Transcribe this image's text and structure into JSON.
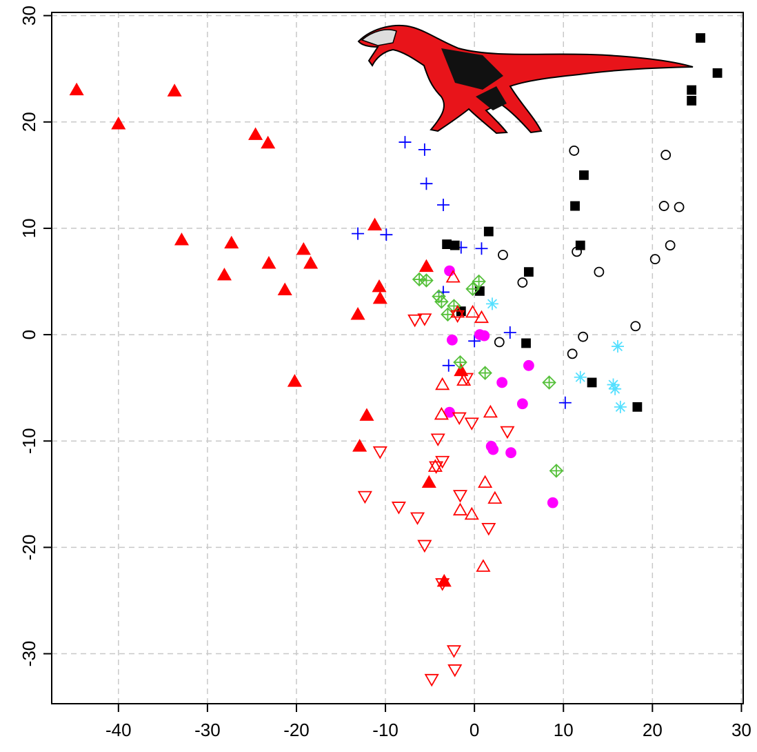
{
  "chart_data": {
    "type": "scatter",
    "xlim": [
      -47.5,
      30.2
    ],
    "ylim": [
      -34.7,
      30.3
    ],
    "xticks": [
      -40,
      -30,
      -20,
      -10,
      0,
      10,
      20,
      30
    ],
    "yticks": [
      -30,
      -20,
      -10,
      0,
      10,
      20,
      30
    ],
    "grid": true,
    "series": [
      {
        "marker": "triangle-filled",
        "color": "#ff0000",
        "x": [
          -44.7,
          -40,
          -33.7,
          -32.9,
          -27.3,
          -28.1,
          -24.6,
          -23.2,
          -23.1,
          -21.3,
          -19.2,
          -18.4,
          -20.2,
          -11.2,
          -10.7,
          -10.6,
          -13.1,
          -12.1,
          -12.9,
          -5.4,
          -5.1,
          -3.4,
          -1.5
        ],
        "values": [
          23.0,
          19.8,
          22.9,
          8.9,
          8.6,
          5.6,
          18.8,
          18.0,
          6.7,
          4.2,
          8.0,
          6.7,
          -4.4,
          10.3,
          4.5,
          3.4,
          1.9,
          -7.6,
          -10.5,
          6.4,
          -13.9,
          -23.2,
          -3.4
        ]
      },
      {
        "marker": "plus",
        "color": "#0000ff",
        "x": [
          -7.8,
          -5.6,
          -5.4,
          -3.5,
          -13.1,
          -9.9,
          -1.5,
          0.8,
          -3.5,
          0,
          4,
          -2.9,
          10.2
        ],
        "values": [
          18.1,
          17.4,
          14.2,
          12.2,
          9.5,
          9.4,
          8.2,
          8.1,
          4.0,
          -0.6,
          0.2,
          -2.9,
          -6.4
        ]
      },
      {
        "marker": "square-filled",
        "color": "#000000",
        "x": [
          25.4,
          27.3,
          24.4,
          24.4,
          12.3,
          11.3,
          11.9,
          1.6,
          -3.1,
          -2.2,
          0.6,
          -1.5,
          6.1,
          5.8,
          13.2,
          18.3
        ],
        "values": [
          27.9,
          24.6,
          23.0,
          22.0,
          15.0,
          12.1,
          8.4,
          9.7,
          8.5,
          8.4,
          4.1,
          2.2,
          5.9,
          -0.8,
          -4.5,
          -6.8
        ]
      },
      {
        "marker": "circle-open",
        "color": "#000000",
        "x": [
          11.2,
          21.5,
          21.3,
          23.0,
          22.0,
          20.3,
          11.5,
          3.2,
          14.0,
          5.4,
          18.1,
          12.2,
          2.8,
          11.0
        ],
        "values": [
          17.3,
          16.9,
          12.1,
          12.0,
          8.4,
          7.1,
          7.8,
          7.5,
          5.9,
          4.9,
          0.8,
          -0.2,
          -0.7,
          -1.8
        ]
      },
      {
        "marker": "asterisk",
        "color": "#55e0ff",
        "x": [
          2.0,
          16.1,
          11.9,
          15.6,
          15.8,
          16.4
        ],
        "values": [
          2.9,
          -1.1,
          -4.0,
          -4.7,
          -5.1,
          -6.8
        ]
      },
      {
        "marker": "diamond-plus",
        "color": "#55c03a",
        "x": [
          -6.2,
          -5.4,
          -4.0,
          -3.7,
          -3.0,
          0.5,
          -0.2,
          -2.3,
          -1.6,
          1.2,
          8.4,
          9.2
        ],
        "values": [
          5.2,
          5.1,
          3.6,
          3.1,
          1.9,
          5.0,
          4.3,
          2.7,
          -2.6,
          -3.6,
          -4.5,
          -12.8
        ]
      },
      {
        "marker": "circle-filled",
        "color": "#ff00ff",
        "x": [
          -2.8,
          -2.5,
          0.6,
          1.1,
          6.1,
          3.1,
          5.4,
          -2.8,
          1.9,
          2.1,
          4.1,
          8.8
        ],
        "values": [
          6.0,
          -0.5,
          0.0,
          -0.1,
          -2.9,
          -4.5,
          -6.5,
          -7.3,
          -10.5,
          -10.8,
          -11.1,
          -15.8
        ]
      },
      {
        "marker": "triangle-open",
        "color": "#ff0000",
        "x": [
          -2.4,
          -1.9,
          0.8,
          -0.2,
          -3.6,
          -3.7,
          1.8,
          -1.2,
          1.2,
          2.3,
          -1.6,
          -0.3,
          0.99,
          -4.4
        ],
        "values": [
          5.4,
          2.1,
          1.6,
          2.1,
          -4.7,
          -7.5,
          -7.3,
          -4.3,
          -13.9,
          -15.4,
          -16.5,
          -16.9,
          -21.8,
          -12.4
        ]
      },
      {
        "marker": "triangle-down-open",
        "color": "#ff0000",
        "x": [
          -6.7,
          -5.6,
          -1.9,
          -0.9,
          -1.7,
          -0.3,
          3.7,
          -4.1,
          -10.6,
          -3.6,
          -4.3,
          -12.3,
          -1.6,
          -8.5,
          -6.4,
          1.6,
          -5.6,
          -3.6,
          -2.3,
          -2.2,
          -4.8
        ],
        "values": [
          1.4,
          1.5,
          1.8,
          -4.1,
          -7.8,
          -8.3,
          -9.1,
          -9.8,
          -11.0,
          -11.9,
          -12.4,
          -15.2,
          -15.1,
          -16.2,
          -17.2,
          -18.2,
          -19.8,
          -23.4,
          -29.7,
          -31.5,
          -32.4
        ]
      }
    ]
  }
}
